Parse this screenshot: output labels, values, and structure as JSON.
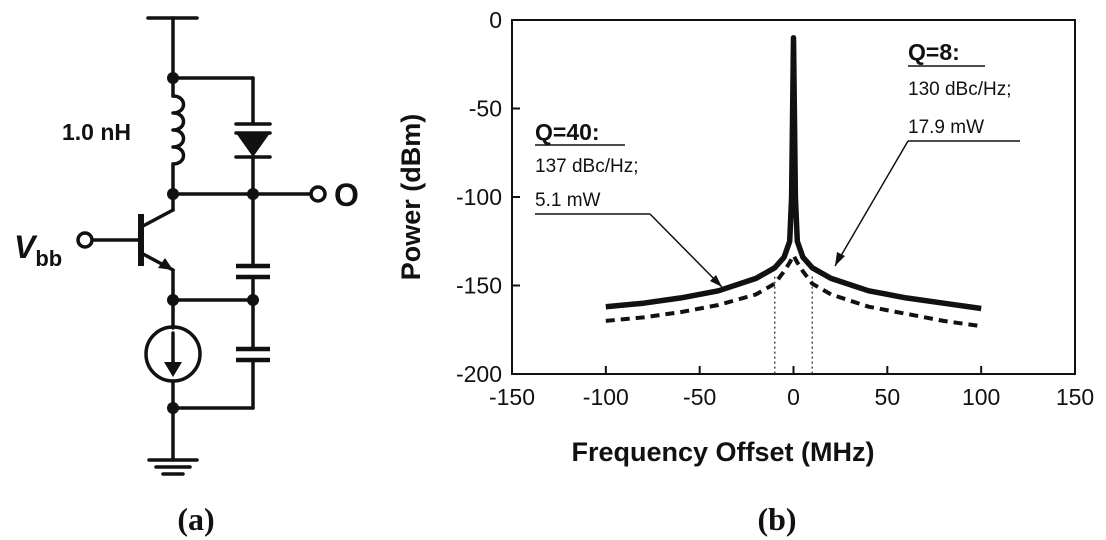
{
  "circuit": {
    "inductor_label": "1.0 nH",
    "input_label_main": "V",
    "input_label_sub": "bb",
    "output_label": "O",
    "caption": "(a)"
  },
  "plot": {
    "caption": "(b)",
    "annotation_q40": {
      "title": "Q=40:",
      "line1": "137 dBc/Hz;",
      "line2": "5.1 mW"
    },
    "annotation_q8": {
      "title": "Q=8:",
      "line1": "130 dBc/Hz;",
      "line2": "17.9 mW"
    }
  },
  "chart_data": {
    "type": "line",
    "xlabel": "Frequency Offset  (MHz)",
    "ylabel": "Power  (dBm)",
    "xlim": [
      -150,
      150
    ],
    "ylim": [
      -200,
      0
    ],
    "xticks": [
      -150,
      -100,
      -50,
      0,
      50,
      100,
      150
    ],
    "yticks": [
      0,
      -50,
      -100,
      -150,
      -200
    ],
    "grid": false,
    "series": [
      {
        "name": "Q=8",
        "style": "solid",
        "x": [
          -100,
          -80,
          -60,
          -40,
          -20,
          -10,
          -5,
          -2,
          -1,
          0,
          1,
          2,
          5,
          10,
          20,
          40,
          60,
          80,
          100
        ],
        "y": [
          -162,
          -160,
          -157,
          -153,
          -146,
          -140,
          -134,
          -125,
          -100,
          -10,
          -100,
          -125,
          -134,
          -140,
          -146,
          -153,
          -157,
          -160,
          -163
        ]
      },
      {
        "name": "Q=40",
        "style": "dashed",
        "x": [
          -100,
          -80,
          -60,
          -40,
          -20,
          -10,
          -5,
          -2,
          0,
          2,
          5,
          10,
          20,
          40,
          60,
          80,
          100
        ],
        "y": [
          -170,
          -168,
          -165,
          -161,
          -155,
          -149,
          -142,
          -137,
          -133,
          -137,
          -142,
          -149,
          -155,
          -162,
          -166,
          -170,
          -173
        ]
      }
    ],
    "guide_lines_x": [
      -10,
      10
    ]
  }
}
